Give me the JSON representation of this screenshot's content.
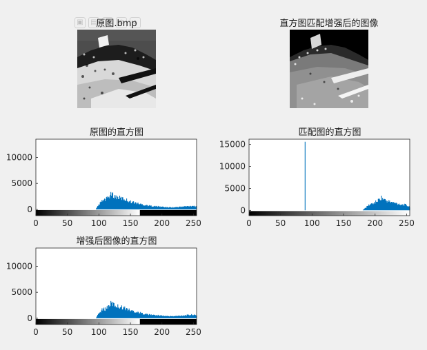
{
  "figure": {
    "toolbar": {
      "icons": [
        "save-icon",
        "open-icon",
        "print-icon",
        "zoom-icon",
        "home-icon"
      ]
    },
    "images": [
      {
        "title": "原图.bmp"
      },
      {
        "title": "直方图匹配增强后的图像"
      }
    ],
    "histograms": [
      {
        "title": "原图的直方图"
      },
      {
        "title": "匹配图的直方图"
      },
      {
        "title": "增强后图像的直方图"
      }
    ]
  },
  "chart_data": [
    {
      "type": "area",
      "title": "原图的直方图",
      "xlim": [
        0,
        255
      ],
      "ylim": [
        -1200,
        13500
      ],
      "xticks": [
        0,
        50,
        100,
        150,
        200,
        250
      ],
      "yticks": [
        0,
        5000,
        10000
      ],
      "x": [
        0,
        95,
        100,
        105,
        110,
        115,
        120,
        125,
        130,
        140,
        150,
        160,
        170,
        180,
        190,
        200,
        210,
        220,
        230,
        240,
        250,
        255
      ],
      "y": [
        0,
        0,
        900,
        1600,
        1800,
        2300,
        2900,
        2500,
        2300,
        2000,
        1500,
        1200,
        900,
        700,
        600,
        500,
        400,
        400,
        500,
        600,
        700,
        500
      ],
      "colorbar": "gray-ramp 0-165, black 165-255",
      "color": "#0072BD"
    },
    {
      "type": "area",
      "title": "匹配图的直方图",
      "xlim": [
        0,
        255
      ],
      "ylim": [
        -1200,
        16200
      ],
      "xticks": [
        0,
        50,
        100,
        150,
        200,
        250
      ],
      "yticks": [
        0,
        5000,
        10000,
        15000
      ],
      "x": [
        0,
        88,
        89,
        90,
        180,
        185,
        190,
        195,
        200,
        205,
        210,
        215,
        220,
        230,
        240,
        250,
        255
      ],
      "y": [
        0,
        0,
        15600,
        0,
        0,
        600,
        1200,
        1500,
        1800,
        2300,
        2900,
        2400,
        2100,
        1700,
        1400,
        1200,
        700
      ],
      "colorbar": "gray-ramp 0-255",
      "color": "#0072BD"
    },
    {
      "type": "area",
      "title": "增强后图像的直方图",
      "xlim": [
        0,
        255
      ],
      "ylim": [
        -1200,
        13500
      ],
      "xticks": [
        0,
        50,
        100,
        150,
        200,
        250
      ],
      "yticks": [
        0,
        5000,
        10000
      ],
      "x": [
        0,
        95,
        100,
        105,
        110,
        115,
        120,
        125,
        130,
        140,
        150,
        160,
        170,
        180,
        190,
        200,
        210,
        220,
        230,
        240,
        250,
        255
      ],
      "y": [
        0,
        0,
        900,
        1600,
        1800,
        2300,
        2900,
        2500,
        2300,
        2000,
        1500,
        1200,
        900,
        700,
        600,
        500,
        400,
        400,
        500,
        600,
        700,
        500
      ],
      "colorbar": "gray-ramp 0-165, black 165-255",
      "color": "#0072BD"
    }
  ]
}
